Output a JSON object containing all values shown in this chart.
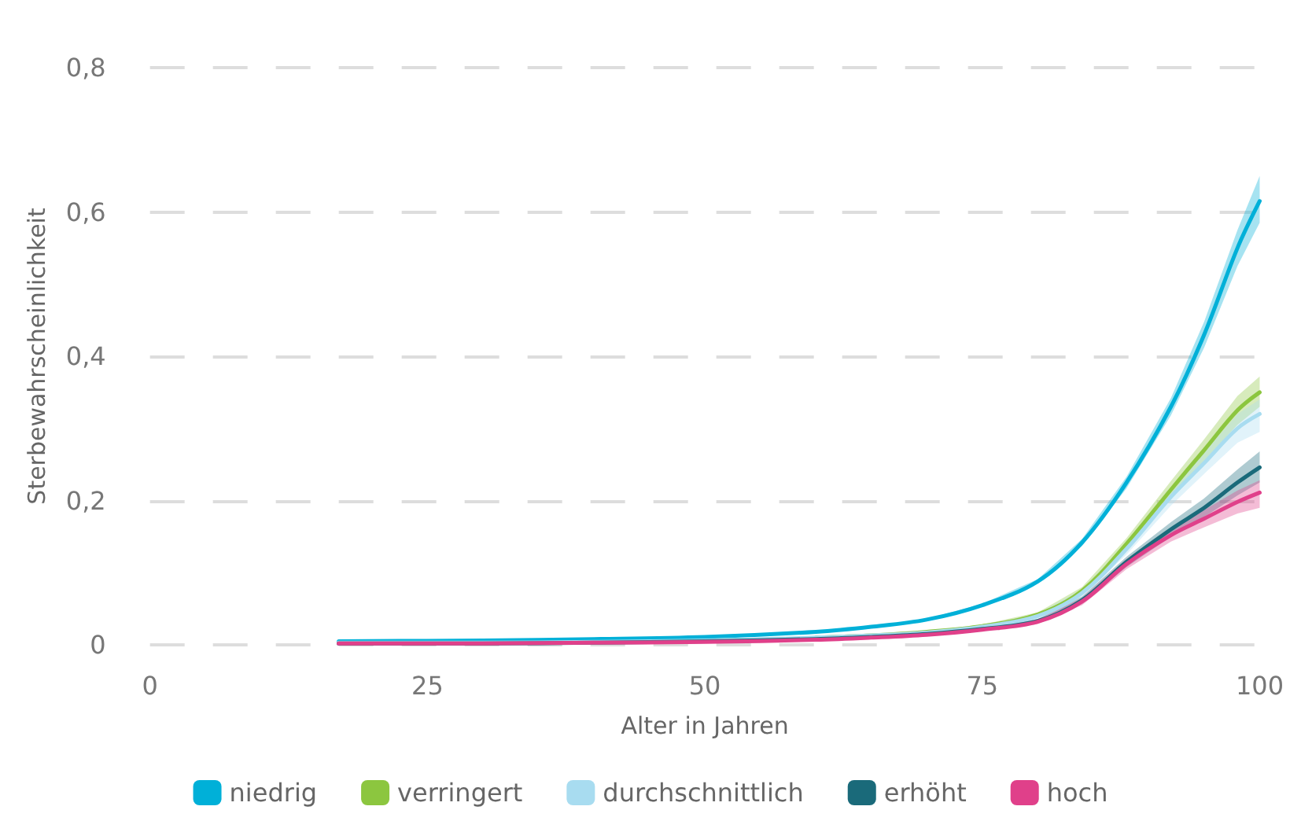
{
  "chart_data": {
    "type": "line",
    "xlabel": "Alter in Jahren",
    "ylabel": "Sterbewahrscheinlichkeit",
    "x": [
      17,
      30,
      40,
      50,
      60,
      65,
      70,
      75,
      80,
      84,
      88,
      92,
      95,
      98,
      100
    ],
    "xlim": [
      0,
      100
    ],
    "xticks": [
      0,
      25,
      50,
      75,
      100
    ],
    "ylim": [
      0,
      0.8
    ],
    "yticks": [
      0,
      {
        "value": 0.2,
        "label": "0,2"
      },
      {
        "value": 0.4,
        "label": "0,4"
      },
      {
        "value": 0.6,
        "label": "0,6"
      },
      {
        "value": 0.8,
        "label": "0,8"
      }
    ],
    "grid": "y",
    "legend": "bottom",
    "marker": "none",
    "line_style": "solid",
    "series": [
      {
        "name": "niedrig",
        "color": "#00b0d8",
        "values": [
          0.005,
          0.006,
          0.008,
          0.011,
          0.018,
          0.025,
          0.035,
          0.055,
          0.088,
          0.142,
          0.225,
          0.33,
          0.43,
          0.55,
          0.615
        ],
        "lower": [
          0.004,
          0.005,
          0.007,
          0.01,
          0.017,
          0.024,
          0.034,
          0.053,
          0.085,
          0.137,
          0.217,
          0.318,
          0.412,
          0.525,
          0.585
        ],
        "upper": [
          0.006,
          0.007,
          0.009,
          0.012,
          0.019,
          0.026,
          0.036,
          0.057,
          0.091,
          0.147,
          0.233,
          0.342,
          0.448,
          0.575,
          0.65
        ]
      },
      {
        "name": "verringert",
        "color": "#8cc63f",
        "values": [
          null,
          null,
          null,
          null,
          0.01,
          0.013,
          0.018,
          0.026,
          0.042,
          0.075,
          0.14,
          0.215,
          0.27,
          0.325,
          0.35
        ],
        "lower": [
          0.002,
          0.002,
          0.003,
          0.005,
          0.009,
          0.012,
          0.017,
          0.024,
          0.039,
          0.07,
          0.132,
          0.203,
          0.255,
          0.305,
          0.33
        ],
        "upper": [
          0.004,
          0.004,
          0.005,
          0.007,
          0.011,
          0.014,
          0.019,
          0.028,
          0.045,
          0.08,
          0.148,
          0.227,
          0.285,
          0.345,
          0.372
        ]
      },
      {
        "name": "durchschnittlich",
        "color": "#a8dcf0",
        "values": [
          0.003,
          0.003,
          0.004,
          0.006,
          0.01,
          0.013,
          0.017,
          0.025,
          0.04,
          0.072,
          0.133,
          0.205,
          0.252,
          0.3,
          0.32
        ],
        "lower": [
          0.002,
          0.002,
          0.003,
          0.005,
          0.009,
          0.012,
          0.016,
          0.023,
          0.037,
          0.067,
          0.125,
          0.193,
          0.237,
          0.28,
          0.295
        ],
        "upper": [
          0.004,
          0.004,
          0.005,
          0.007,
          0.011,
          0.014,
          0.018,
          0.027,
          0.043,
          0.077,
          0.141,
          0.217,
          0.267,
          0.32,
          0.34
        ]
      },
      {
        "name": "erhöht",
        "color": "#1a6a7a",
        "values": [
          0.002,
          0.002,
          0.003,
          0.005,
          0.008,
          0.011,
          0.015,
          0.022,
          0.033,
          0.062,
          0.115,
          0.16,
          0.19,
          0.225,
          0.246
        ],
        "lower": [
          0.001,
          0.001,
          0.002,
          0.004,
          0.007,
          0.01,
          0.014,
          0.02,
          0.03,
          0.057,
          0.108,
          0.15,
          0.177,
          0.207,
          0.225
        ],
        "upper": [
          0.003,
          0.003,
          0.004,
          0.006,
          0.009,
          0.012,
          0.016,
          0.024,
          0.036,
          0.067,
          0.122,
          0.17,
          0.203,
          0.243,
          0.268
        ]
      },
      {
        "name": "hoch",
        "color": "#e0408a",
        "values": [
          0.002,
          0.002,
          0.003,
          0.004,
          0.007,
          0.01,
          0.014,
          0.021,
          0.032,
          0.06,
          0.112,
          0.152,
          0.175,
          0.198,
          0.211
        ],
        "lower": [
          0.001,
          0.001,
          0.002,
          0.003,
          0.006,
          0.009,
          0.013,
          0.019,
          0.029,
          0.055,
          0.105,
          0.143,
          0.163,
          0.182,
          0.19
        ],
        "upper": [
          0.003,
          0.003,
          0.004,
          0.005,
          0.008,
          0.011,
          0.015,
          0.023,
          0.035,
          0.065,
          0.119,
          0.161,
          0.187,
          0.214,
          0.228
        ]
      }
    ]
  }
}
